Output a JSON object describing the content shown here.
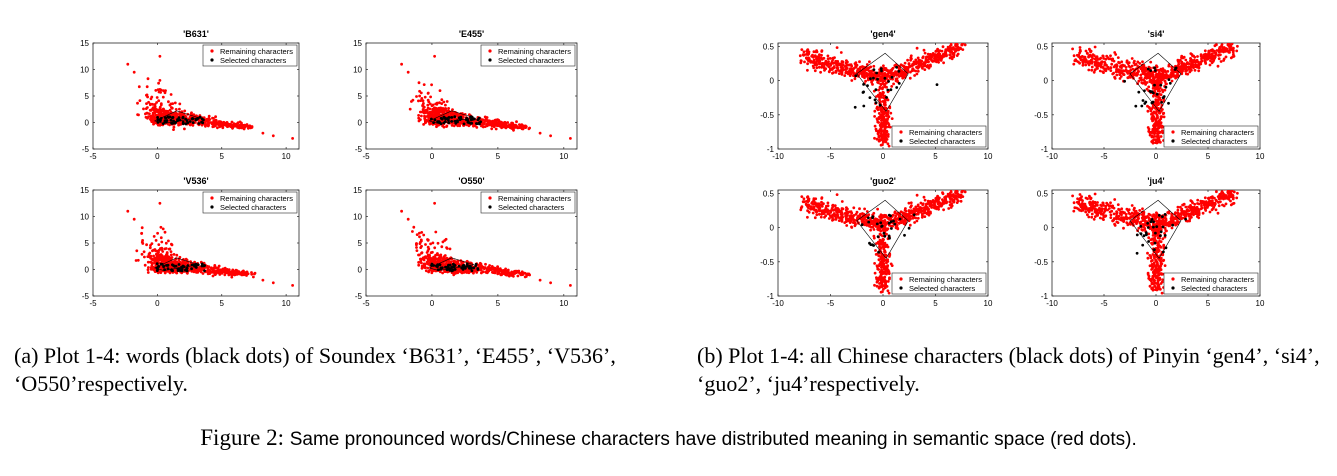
{
  "figure": {
    "label": "Figure 2:",
    "caption": "Same pronounced words/Chinese characters have distributed meaning in semantic space (red dots)."
  },
  "subcaptions": {
    "a": "(a) Plot 1-4: words (black dots) of Soundex ‘B631’, ‘E455’, ‘V536’, ‘O550’respectively.",
    "b": "(b)  Plot 1-4: all Chinese characters (black dots) of Pinyin ‘gen4’, ‘si4’, ‘guo2’, ‘ju4’respectively."
  },
  "colors": {
    "remaining": "#ff0000",
    "selected": "#000000",
    "axis": "#262626"
  },
  "chart_data": [
    {
      "type": "scatter",
      "title": "'B631'",
      "group": "soundex",
      "xlim": [
        -5,
        11
      ],
      "ylim": [
        -5,
        15
      ],
      "xticks": [
        -5,
        0,
        5,
        10
      ],
      "yticks": [
        -5,
        0,
        5,
        10,
        15
      ],
      "series": [
        {
          "name": "Remaining characters"
        },
        {
          "name": "Selected characters"
        }
      ]
    },
    {
      "type": "scatter",
      "title": "'E455'",
      "group": "soundex",
      "xlim": [
        -5,
        11
      ],
      "ylim": [
        -5,
        15
      ],
      "xticks": [
        -5,
        0,
        5,
        10
      ],
      "yticks": [
        -5,
        0,
        5,
        10,
        15
      ],
      "series": [
        {
          "name": "Remaining characters"
        },
        {
          "name": "Selected characters"
        }
      ]
    },
    {
      "type": "scatter",
      "title": "'V536'",
      "group": "soundex",
      "xlim": [
        -5,
        11
      ],
      "ylim": [
        -5,
        15
      ],
      "xticks": [
        -5,
        0,
        5,
        10
      ],
      "yticks": [
        -5,
        0,
        5,
        10,
        15
      ],
      "series": [
        {
          "name": "Remaining characters"
        },
        {
          "name": "Selected characters"
        }
      ]
    },
    {
      "type": "scatter",
      "title": "'O550'",
      "group": "soundex",
      "xlim": [
        -5,
        11
      ],
      "ylim": [
        -5,
        15
      ],
      "xticks": [
        -5,
        0,
        5,
        10
      ],
      "yticks": [
        -5,
        0,
        5,
        10,
        15
      ],
      "series": [
        {
          "name": "Remaining characters"
        },
        {
          "name": "Selected characters"
        }
      ]
    },
    {
      "type": "scatter",
      "title": "'gen4'",
      "group": "pinyin",
      "xlim": [
        -10,
        10
      ],
      "ylim": [
        -1,
        0.55
      ],
      "xticks": [
        -10,
        -5,
        0,
        5,
        10
      ],
      "yticks": [
        -1,
        -0.5,
        0,
        0.5
      ],
      "series": [
        {
          "name": "Remaining characters"
        },
        {
          "name": "Selected characters"
        }
      ]
    },
    {
      "type": "scatter",
      "title": "'si4'",
      "group": "pinyin",
      "xlim": [
        -10,
        10
      ],
      "ylim": [
        -1,
        0.55
      ],
      "xticks": [
        -10,
        -5,
        0,
        5,
        10
      ],
      "yticks": [
        -1,
        -0.5,
        0,
        0.5
      ],
      "series": [
        {
          "name": "Remaining characters"
        },
        {
          "name": "Selected characters"
        }
      ]
    },
    {
      "type": "scatter",
      "title": "'guo2'",
      "group": "pinyin",
      "xlim": [
        -10,
        10
      ],
      "ylim": [
        -1,
        0.55
      ],
      "xticks": [
        -10,
        -5,
        0,
        5,
        10
      ],
      "yticks": [
        -1,
        -0.5,
        0,
        0.5
      ],
      "series": [
        {
          "name": "Remaining characters"
        },
        {
          "name": "Selected characters"
        }
      ]
    },
    {
      "type": "scatter",
      "title": "'ju4'",
      "group": "pinyin",
      "xlim": [
        -10,
        10
      ],
      "ylim": [
        -1,
        0.55
      ],
      "xticks": [
        -10,
        -5,
        0,
        5,
        10
      ],
      "yticks": [
        -1,
        -0.5,
        0,
        0.5
      ],
      "series": [
        {
          "name": "Remaining characters"
        },
        {
          "name": "Selected characters"
        }
      ]
    }
  ]
}
